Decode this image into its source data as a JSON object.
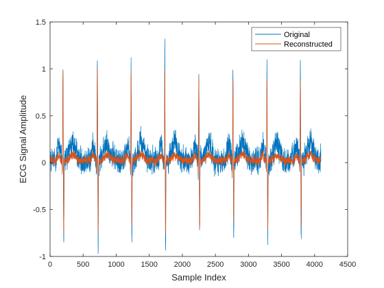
{
  "chart_data": {
    "type": "line",
    "xlabel": "Sample Index",
    "ylabel": "ECG Signal Amplitude",
    "xlim": [
      0,
      4500
    ],
    "ylim": [
      -1,
      1.5
    ],
    "x_ticks": [
      0,
      500,
      1000,
      1500,
      2000,
      2500,
      3000,
      3500,
      4000,
      4500
    ],
    "x_tick_labels": [
      "0",
      "500",
      "1000",
      "1500",
      "2000",
      "2500",
      "3000",
      "3500",
      "4000",
      "4500"
    ],
    "y_ticks": [
      -1,
      -0.5,
      0,
      0.5,
      1,
      1.5
    ],
    "y_tick_labels": [
      "-1",
      "-0.5",
      "0",
      "0.5",
      "1",
      "1.5"
    ],
    "grid": false,
    "legend_position": "top-right",
    "samples": 4096,
    "series": [
      {
        "name": "Original",
        "color": "#0072BD",
        "noise_amplitude": 0.12,
        "beats": [
          {
            "x": 195,
            "peak": 0.98,
            "trough": -0.95
          },
          {
            "x": 715,
            "peak": 1.1,
            "trough": -0.95
          },
          {
            "x": 1225,
            "peak": 1.02,
            "trough": -0.83
          },
          {
            "x": 1735,
            "peak": 1.16,
            "trough": -0.95
          },
          {
            "x": 2250,
            "peak": 0.97,
            "trough": -0.75
          },
          {
            "x": 2765,
            "peak": 1.0,
            "trough": -0.82
          },
          {
            "x": 3280,
            "peak": 0.96,
            "trough": -0.78
          },
          {
            "x": 3785,
            "peak": 1.04,
            "trough": -0.86
          }
        ]
      },
      {
        "name": "Reconstructed",
        "color": "#D95319",
        "noise_amplitude": 0.04,
        "beats": [
          {
            "x": 195,
            "peak": 0.95,
            "trough": -0.8
          },
          {
            "x": 715,
            "peak": 0.98,
            "trough": -0.76
          },
          {
            "x": 1225,
            "peak": 0.93,
            "trough": -0.72
          },
          {
            "x": 1735,
            "peak": 0.95,
            "trough": -0.78
          },
          {
            "x": 2250,
            "peak": 0.87,
            "trough": -0.73
          },
          {
            "x": 2765,
            "peak": 0.86,
            "trough": -0.67
          },
          {
            "x": 3280,
            "peak": 0.89,
            "trough": -0.75
          },
          {
            "x": 3785,
            "peak": 0.88,
            "trough": -0.7
          }
        ]
      }
    ]
  }
}
